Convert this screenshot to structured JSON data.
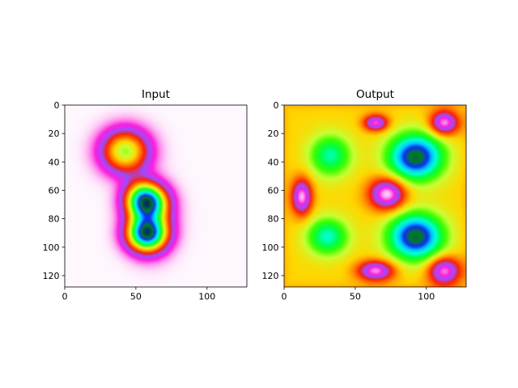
{
  "colormap": {
    "name": "gist_ncar_r",
    "stops": [
      "#fef8fe",
      "#fc1fdb",
      "#9d4cff",
      "#ff2000",
      "#ff7e00",
      "#ffd700",
      "#c8ff33",
      "#39fe00",
      "#00fe46",
      "#00ffd5",
      "#00c7ff",
      "#0e2bf3",
      "#007d2b",
      "#003d56",
      "#000080"
    ]
  },
  "chart_data": [
    {
      "type": "heatmap",
      "title": "Input",
      "xlabel": "",
      "ylabel": "",
      "xlim": [
        0,
        128
      ],
      "ylim": [
        128,
        0
      ],
      "xticks": [
        0,
        50,
        100
      ],
      "yticks": [
        0,
        20,
        40,
        60,
        80,
        100,
        120
      ],
      "xtick_labels": [
        "0",
        "50",
        "100"
      ],
      "ytick_labels": [
        "0",
        "20",
        "40",
        "60",
        "80",
        "100",
        "120"
      ],
      "grid": false,
      "image_size": [
        128,
        128
      ],
      "value_range": [
        0,
        1
      ],
      "background_value": 0.0,
      "blobs": [
        {
          "x": 42,
          "y": 32,
          "sx": 11,
          "sy": 10,
          "peak": 0.45
        },
        {
          "x": 57,
          "y": 68,
          "sx": 9,
          "sy": 8,
          "peak": 0.72
        },
        {
          "x": 57,
          "y": 90,
          "sx": 9,
          "sy": 8,
          "peak": 0.75
        },
        {
          "x": 52,
          "y": 60,
          "sx": 8,
          "sy": 8,
          "peak": 0.12
        },
        {
          "x": 60,
          "y": 80,
          "sx": 10,
          "sy": 14,
          "peak": 0.22
        }
      ]
    },
    {
      "type": "heatmap",
      "title": "Output",
      "xlabel": "",
      "ylabel": "",
      "xlim": [
        0,
        128
      ],
      "ylim": [
        128,
        0
      ],
      "xticks": [
        0,
        50,
        100
      ],
      "yticks": [
        0,
        20,
        40,
        60,
        80,
        100,
        120
      ],
      "xtick_labels": [
        "0",
        "50",
        "100"
      ],
      "ytick_labels": [
        "0",
        "20",
        "40",
        "60",
        "80",
        "100",
        "120"
      ],
      "grid": false,
      "image_size": [
        128,
        128
      ],
      "value_range": [
        0,
        1
      ],
      "background_value": 0.36,
      "edge_value": 0.33,
      "blobs": [
        {
          "x": 32,
          "y": 35,
          "sx": 10,
          "sy": 10,
          "peak": 0.26
        },
        {
          "x": 30,
          "y": 92,
          "sx": 10,
          "sy": 9,
          "peak": 0.28
        },
        {
          "x": 92,
          "y": 36,
          "sx": 13,
          "sy": 11,
          "peak": 0.52
        },
        {
          "x": 92,
          "y": 92,
          "sx": 13,
          "sy": 11,
          "peak": 0.52
        },
        {
          "x": 64,
          "y": 12,
          "sx": 6,
          "sy": 4,
          "peak": -0.31
        },
        {
          "x": 112,
          "y": 12,
          "sx": 7,
          "sy": 6,
          "peak": -0.34
        },
        {
          "x": 12,
          "y": 64,
          "sx": 5,
          "sy": 9,
          "peak": -0.34
        },
        {
          "x": 72,
          "y": 62,
          "sx": 9,
          "sy": 8,
          "peak": -0.36
        },
        {
          "x": 64,
          "y": 116,
          "sx": 9,
          "sy": 5,
          "peak": -0.33
        },
        {
          "x": 112,
          "y": 116,
          "sx": 8,
          "sy": 7,
          "peak": -0.33
        }
      ]
    }
  ]
}
